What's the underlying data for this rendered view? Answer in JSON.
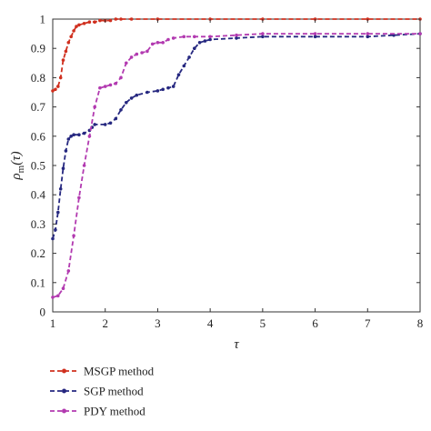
{
  "chart_data": {
    "type": "line",
    "xlabel": "τ",
    "ylabel_main": "ρ",
    "ylabel_sub": "m",
    "ylabel_paren": "(τ)",
    "xlim": [
      1,
      8
    ],
    "ylim": [
      0,
      1
    ],
    "xticks": [
      1,
      2,
      3,
      4,
      5,
      6,
      7,
      8
    ],
    "yticks": [
      0,
      0.1,
      0.2,
      0.3,
      0.4,
      0.5,
      0.6,
      0.7,
      0.8,
      0.9,
      1
    ],
    "ytick_labels": [
      "0",
      "0.1",
      "0.2",
      "0.3",
      "0.4",
      "0.5",
      "0.6",
      "0.7",
      "0.8",
      "0.9",
      "1"
    ],
    "grid": false,
    "legend_position": "below",
    "series": [
      {
        "name": "MSGP method",
        "color": "#d0301f",
        "dash": "5,3",
        "x": [
          1.0,
          1.05,
          1.1,
          1.15,
          1.2,
          1.25,
          1.3,
          1.35,
          1.4,
          1.45,
          1.5,
          1.6,
          1.7,
          1.8,
          1.9,
          2.0,
          2.1,
          2.2,
          2.3,
          2.5,
          3.0,
          4.0,
          5.0,
          6.0,
          7.0,
          8.0
        ],
        "y": [
          0.755,
          0.76,
          0.77,
          0.8,
          0.86,
          0.89,
          0.92,
          0.94,
          0.96,
          0.975,
          0.98,
          0.985,
          0.99,
          0.99,
          0.995,
          0.995,
          0.995,
          1.0,
          1.0,
          1.0,
          1.0,
          1.0,
          1.0,
          1.0,
          1.0,
          1.0
        ]
      },
      {
        "name": "SGP method",
        "color": "#262880",
        "dash": "5,3",
        "x": [
          1.0,
          1.05,
          1.1,
          1.15,
          1.2,
          1.25,
          1.3,
          1.35,
          1.4,
          1.5,
          1.6,
          1.7,
          1.75,
          1.8,
          2.0,
          2.1,
          2.2,
          2.3,
          2.4,
          2.5,
          2.6,
          2.8,
          3.0,
          3.1,
          3.2,
          3.3,
          3.4,
          3.5,
          3.6,
          3.7,
          3.8,
          3.9,
          4.0,
          4.5,
          5.0,
          6.0,
          7.0,
          7.5,
          8.0
        ],
        "y": [
          0.25,
          0.28,
          0.34,
          0.42,
          0.49,
          0.55,
          0.59,
          0.6,
          0.605,
          0.605,
          0.61,
          0.62,
          0.63,
          0.64,
          0.64,
          0.645,
          0.66,
          0.69,
          0.715,
          0.73,
          0.74,
          0.75,
          0.755,
          0.76,
          0.765,
          0.77,
          0.81,
          0.84,
          0.87,
          0.9,
          0.92,
          0.925,
          0.93,
          0.935,
          0.94,
          0.94,
          0.94,
          0.945,
          0.95
        ]
      },
      {
        "name": "PDY method",
        "color": "#b23ab0",
        "dash": "5,3",
        "x": [
          1.0,
          1.1,
          1.2,
          1.3,
          1.4,
          1.5,
          1.6,
          1.7,
          1.8,
          1.9,
          2.0,
          2.1,
          2.2,
          2.3,
          2.4,
          2.5,
          2.6,
          2.7,
          2.8,
          2.9,
          3.0,
          3.1,
          3.2,
          3.3,
          3.5,
          3.7,
          4.0,
          4.5,
          5.0,
          6.0,
          7.0,
          8.0
        ],
        "y": [
          0.05,
          0.055,
          0.08,
          0.14,
          0.26,
          0.39,
          0.5,
          0.6,
          0.7,
          0.765,
          0.77,
          0.775,
          0.78,
          0.8,
          0.85,
          0.87,
          0.88,
          0.885,
          0.89,
          0.915,
          0.92,
          0.92,
          0.93,
          0.935,
          0.94,
          0.94,
          0.94,
          0.945,
          0.95,
          0.95,
          0.95,
          0.95
        ]
      }
    ]
  }
}
